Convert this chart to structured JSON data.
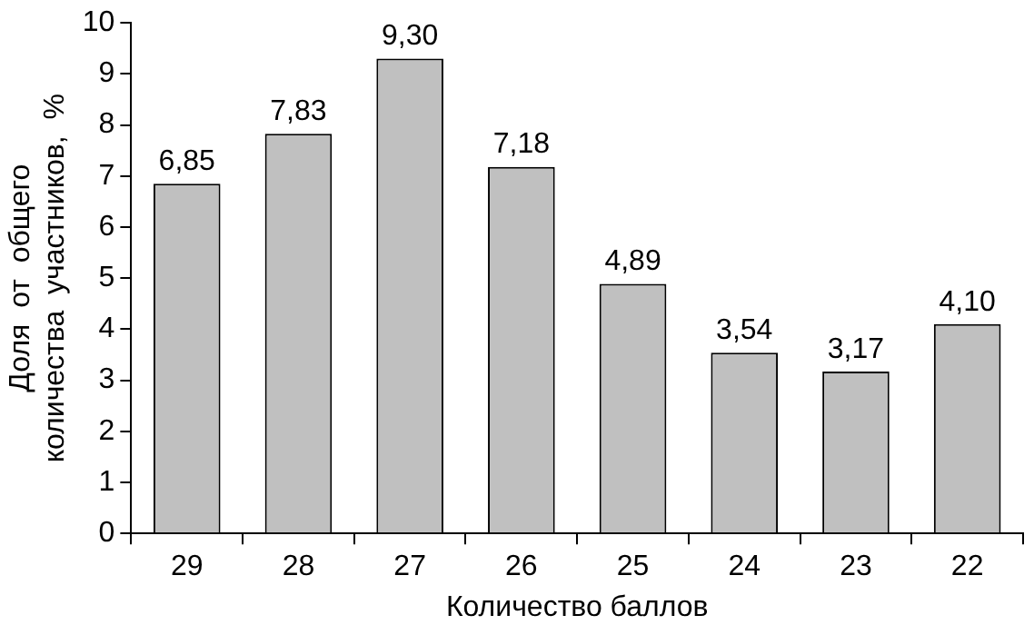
{
  "chart_data": {
    "type": "bar",
    "xlabel": "Количество баллов",
    "ylabel": "Доля  от  общего\nколичества  участников,  %",
    "categories": [
      "29",
      "28",
      "27",
      "26",
      "25",
      "24",
      "23",
      "22"
    ],
    "values": [
      6.85,
      7.83,
      9.3,
      7.18,
      4.89,
      3.54,
      3.17,
      4.1
    ],
    "value_labels": [
      "6,85",
      "7,83",
      "9,30",
      "7,18",
      "4,89",
      "3,54",
      "3,17",
      "4,10"
    ],
    "color": "#c0c0c0",
    "ylim": [
      0,
      10
    ],
    "yticks": [
      0,
      1,
      2,
      3,
      4,
      5,
      6,
      7,
      8,
      9,
      10
    ],
    "grid": false,
    "legend": false
  }
}
